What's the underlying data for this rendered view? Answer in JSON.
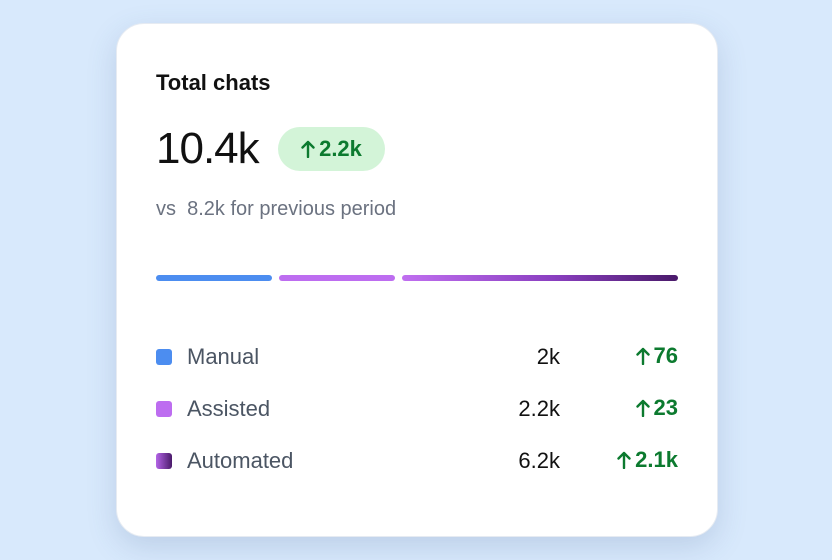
{
  "card": {
    "title": "Total chats",
    "total": "10.4k",
    "change": "2.2k",
    "comparison": "vs  8.2k for previous period",
    "rows": [
      {
        "label": "Manual",
        "value": "2k",
        "change": "76"
      },
      {
        "label": "Assisted",
        "value": "2.2k",
        "change": "23"
      },
      {
        "label": "Automated",
        "value": "6.2k",
        "change": "2.1k"
      }
    ]
  }
}
